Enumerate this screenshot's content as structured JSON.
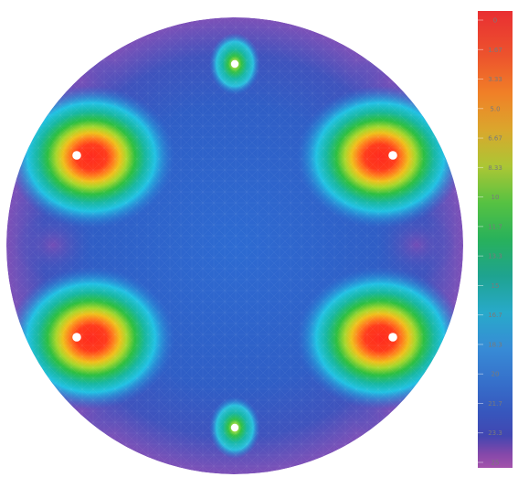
{
  "figure": {
    "type": "contour-plot",
    "domain_shape": "circle",
    "mesh_overlay": true,
    "background_color": "#ffffff"
  },
  "colorbar": {
    "orientation": "vertical",
    "placement": "right",
    "tick_labels": [
      "0",
      "1.67",
      "3.33",
      "5.0",
      "6.67",
      "8.33",
      "10",
      "11.7",
      "13.3",
      "15",
      "16.7",
      "18.3",
      "20",
      "21.7",
      "23.3",
      "25"
    ],
    "colors": [
      "#e8262a",
      "#ec4d24",
      "#f07a1e",
      "#d9a324",
      "#a8c42c",
      "#4fbf3a",
      "#1fae54",
      "#159f8b",
      "#1fa6c8",
      "#2f86d4",
      "#2e67c7",
      "#2f4fba",
      "#3a3fae",
      "#5a3da8",
      "#8040a6",
      "#a04ca8"
    ]
  },
  "field": {
    "background_colors": {
      "outer": "#7a52b8",
      "mid": "#3562c4",
      "inner": "#2a6cd0"
    },
    "hot_spots": [
      {
        "name": "upper-left",
        "intensity": 1.0
      },
      {
        "name": "upper-right",
        "intensity": 1.0
      },
      {
        "name": "lower-left",
        "intensity": 1.0
      },
      {
        "name": "lower-right",
        "intensity": 1.0
      },
      {
        "name": "top",
        "intensity": 0.35
      },
      {
        "name": "bottom",
        "intensity": 0.35
      }
    ],
    "hot_colors": [
      "#ff2a1e",
      "#ff6a1e",
      "#f2b21a",
      "#b5d22a",
      "#2fbf3c",
      "#1cc0a0",
      "#22c4e0"
    ]
  }
}
